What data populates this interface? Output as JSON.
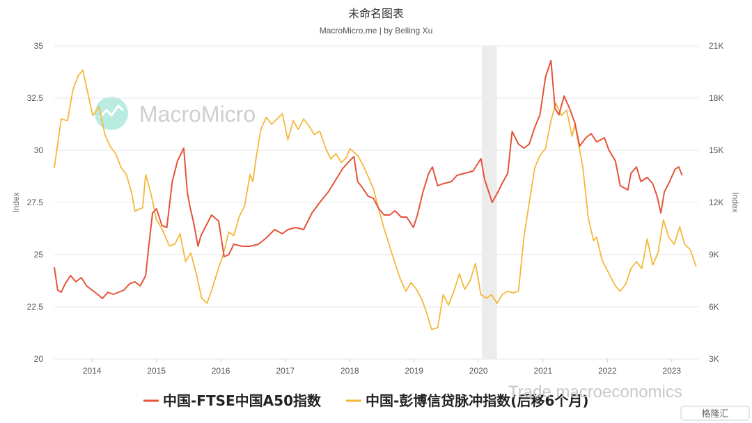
{
  "colors": {
    "a50": "#e4533a",
    "credit": "#f4b73a",
    "grid": "#e6e6e6",
    "recession_band": "#ececec",
    "watermark": "#cfcfcf",
    "watermark_logo": "#9de3d4"
  },
  "watermarks": {
    "brand": "MacroMicro",
    "corner": "Trade macroeconomics",
    "corner_badge": "格隆汇"
  },
  "chart_data": {
    "type": "line",
    "title": "未命名图表",
    "subtitle": "MacroMicro.me | by Belling Xu",
    "x_axis": {
      "type": "date",
      "range": [
        "2013-06-01",
        "2023-06-01"
      ],
      "tick_labels": [
        "2014",
        "2015",
        "2016",
        "2017",
        "2018",
        "2019",
        "2020",
        "2021",
        "2022",
        "2023"
      ]
    },
    "y_left": {
      "label": "Index",
      "range": [
        20,
        35
      ],
      "ticks": [
        20,
        22.5,
        25,
        27.5,
        30,
        32.5,
        35
      ],
      "tick_labels": [
        "20",
        "22.5",
        "25",
        "27.5",
        "30",
        "32.5",
        "35"
      ]
    },
    "y_right": {
      "label": "Index",
      "range": [
        3000,
        21000
      ],
      "ticks": [
        3000,
        6000,
        9000,
        12000,
        15000,
        18000,
        21000
      ],
      "tick_labels": [
        "3K",
        "6K",
        "9K",
        "12K",
        "15K",
        "18K",
        "21K"
      ]
    },
    "shaded_ranges": [
      {
        "from": "2020-01-20",
        "to": "2020-04-15"
      }
    ],
    "legend": {
      "position": "bottom"
    },
    "grid": true,
    "series": [
      {
        "name": "中国-FTSE中国A50指数",
        "axis": "left",
        "points": [
          [
            "2013-06-01",
            24.4
          ],
          [
            "2013-06-20",
            23.3
          ],
          [
            "2013-07-10",
            23.2
          ],
          [
            "2013-08-01",
            23.6
          ],
          [
            "2013-09-01",
            24.0
          ],
          [
            "2013-10-01",
            23.7
          ],
          [
            "2013-11-01",
            23.9
          ],
          [
            "2013-12-01",
            23.5
          ],
          [
            "2014-01-01",
            23.3
          ],
          [
            "2014-02-01",
            23.1
          ],
          [
            "2014-03-01",
            22.9
          ],
          [
            "2014-04-01",
            23.2
          ],
          [
            "2014-05-01",
            23.1
          ],
          [
            "2014-06-01",
            23.2
          ],
          [
            "2014-07-01",
            23.3
          ],
          [
            "2014-08-01",
            23.6
          ],
          [
            "2014-09-01",
            23.7
          ],
          [
            "2014-10-01",
            23.5
          ],
          [
            "2014-11-01",
            24.0
          ],
          [
            "2014-11-20",
            25.5
          ],
          [
            "2014-12-10",
            27.0
          ],
          [
            "2015-01-01",
            27.2
          ],
          [
            "2015-02-01",
            26.4
          ],
          [
            "2015-03-01",
            26.3
          ],
          [
            "2015-04-01",
            28.5
          ],
          [
            "2015-05-01",
            29.5
          ],
          [
            "2015-06-05",
            30.1
          ],
          [
            "2015-06-25",
            28.0
          ],
          [
            "2015-07-10",
            27.3
          ],
          [
            "2015-08-01",
            26.5
          ],
          [
            "2015-08-25",
            25.4
          ],
          [
            "2015-09-10",
            25.9
          ],
          [
            "2015-10-10",
            26.4
          ],
          [
            "2015-11-10",
            26.9
          ],
          [
            "2015-12-20",
            26.6
          ],
          [
            "2016-01-20",
            24.9
          ],
          [
            "2016-02-15",
            25.0
          ],
          [
            "2016-03-15",
            25.5
          ],
          [
            "2016-05-01",
            25.4
          ],
          [
            "2016-06-15",
            25.4
          ],
          [
            "2016-08-01",
            25.5
          ],
          [
            "2016-09-15",
            25.8
          ],
          [
            "2016-11-01",
            26.2
          ],
          [
            "2016-12-15",
            26.0
          ],
          [
            "2017-01-15",
            26.2
          ],
          [
            "2017-03-01",
            26.3
          ],
          [
            "2017-04-15",
            26.2
          ],
          [
            "2017-06-01",
            27.0
          ],
          [
            "2017-07-15",
            27.5
          ],
          [
            "2017-09-01",
            28.0
          ],
          [
            "2017-10-15",
            28.6
          ],
          [
            "2017-11-20",
            29.1
          ],
          [
            "2018-01-01",
            29.5
          ],
          [
            "2018-01-25",
            29.7
          ],
          [
            "2018-02-15",
            28.5
          ],
          [
            "2018-03-15",
            28.2
          ],
          [
            "2018-04-15",
            27.8
          ],
          [
            "2018-05-15",
            27.7
          ],
          [
            "2018-06-15",
            27.2
          ],
          [
            "2018-07-15",
            26.9
          ],
          [
            "2018-08-15",
            26.9
          ],
          [
            "2018-09-15",
            27.1
          ],
          [
            "2018-10-20",
            26.8
          ],
          [
            "2018-11-20",
            26.8
          ],
          [
            "2018-12-28",
            26.3
          ],
          [
            "2019-01-20",
            26.9
          ],
          [
            "2019-02-20",
            28.0
          ],
          [
            "2019-03-25",
            28.9
          ],
          [
            "2019-04-15",
            29.2
          ],
          [
            "2019-05-15",
            28.3
          ],
          [
            "2019-06-15",
            28.4
          ],
          [
            "2019-08-01",
            28.5
          ],
          [
            "2019-09-01",
            28.8
          ],
          [
            "2019-10-15",
            28.9
          ],
          [
            "2019-12-01",
            29.0
          ],
          [
            "2020-01-15",
            29.6
          ],
          [
            "2020-02-05",
            28.6
          ],
          [
            "2020-03-19",
            27.5
          ],
          [
            "2020-04-20",
            28.0
          ],
          [
            "2020-05-20",
            28.5
          ],
          [
            "2020-06-15",
            28.9
          ],
          [
            "2020-07-10",
            30.9
          ],
          [
            "2020-08-15",
            30.3
          ],
          [
            "2020-09-15",
            30.1
          ],
          [
            "2020-10-15",
            30.3
          ],
          [
            "2020-11-15",
            31.1
          ],
          [
            "2020-12-15",
            31.7
          ],
          [
            "2021-01-15",
            33.5
          ],
          [
            "2021-02-15",
            34.3
          ],
          [
            "2021-03-10",
            32.0
          ],
          [
            "2021-04-01",
            31.7
          ],
          [
            "2021-05-01",
            32.6
          ],
          [
            "2021-06-01",
            32.0
          ],
          [
            "2021-07-01",
            31.3
          ],
          [
            "2021-07-28",
            30.2
          ],
          [
            "2021-09-01",
            30.6
          ],
          [
            "2021-10-01",
            30.8
          ],
          [
            "2021-11-01",
            30.4
          ],
          [
            "2021-12-15",
            30.6
          ],
          [
            "2022-01-10",
            30.0
          ],
          [
            "2022-02-15",
            29.5
          ],
          [
            "2022-03-15",
            28.3
          ],
          [
            "2022-04-27",
            28.1
          ],
          [
            "2022-05-15",
            28.9
          ],
          [
            "2022-06-15",
            29.2
          ],
          [
            "2022-07-10",
            28.5
          ],
          [
            "2022-08-15",
            28.7
          ],
          [
            "2022-09-15",
            28.4
          ],
          [
            "2022-10-10",
            27.8
          ],
          [
            "2022-10-31",
            27.0
          ],
          [
            "2022-11-20",
            28.0
          ],
          [
            "2022-12-20",
            28.5
          ],
          [
            "2023-01-20",
            29.1
          ],
          [
            "2023-02-10",
            29.2
          ],
          [
            "2023-03-01",
            28.8
          ]
        ]
      },
      {
        "name": "中国-彭博信贷脉冲指数(后移6个月)",
        "axis": "right",
        "points": [
          [
            "2013-06-01",
            14000
          ],
          [
            "2013-07-10",
            16800
          ],
          [
            "2013-08-15",
            16700
          ],
          [
            "2013-09-15",
            18500
          ],
          [
            "2013-10-15",
            19300
          ],
          [
            "2013-11-10",
            19600
          ],
          [
            "2013-12-10",
            18200
          ],
          [
            "2014-01-05",
            17000
          ],
          [
            "2014-02-10",
            17500
          ],
          [
            "2014-03-15",
            15900
          ],
          [
            "2014-04-15",
            15200
          ],
          [
            "2014-05-15",
            14800
          ],
          [
            "2014-06-15",
            14000
          ],
          [
            "2014-07-15",
            13600
          ],
          [
            "2014-08-15",
            12500
          ],
          [
            "2014-09-01",
            11500
          ],
          [
            "2014-10-15",
            11700
          ],
          [
            "2014-11-01",
            13600
          ],
          [
            "2014-12-01",
            12500
          ],
          [
            "2015-01-01",
            11000
          ],
          [
            "2015-02-01",
            10500
          ],
          [
            "2015-03-15",
            9500
          ],
          [
            "2015-04-15",
            9600
          ],
          [
            "2015-05-15",
            10200
          ],
          [
            "2015-06-15",
            8600
          ],
          [
            "2015-07-15",
            9100
          ],
          [
            "2015-08-15",
            7900
          ],
          [
            "2015-09-15",
            6500
          ],
          [
            "2015-10-15",
            6200
          ],
          [
            "2015-11-15",
            7100
          ],
          [
            "2015-12-15",
            8100
          ],
          [
            "2016-01-15",
            9000
          ],
          [
            "2016-02-15",
            10300
          ],
          [
            "2016-03-15",
            10100
          ],
          [
            "2016-04-15",
            11200
          ],
          [
            "2016-05-15",
            11800
          ],
          [
            "2016-06-15",
            13600
          ],
          [
            "2016-07-01",
            13200
          ],
          [
            "2016-07-20",
            14600
          ],
          [
            "2016-08-15",
            16200
          ],
          [
            "2016-09-15",
            16900
          ],
          [
            "2016-10-15",
            16500
          ],
          [
            "2016-11-15",
            16800
          ],
          [
            "2016-12-15",
            17100
          ],
          [
            "2017-01-15",
            15600
          ],
          [
            "2017-02-15",
            16700
          ],
          [
            "2017-03-15",
            16200
          ],
          [
            "2017-04-15",
            16800
          ],
          [
            "2017-05-15",
            16400
          ],
          [
            "2017-06-15",
            15900
          ],
          [
            "2017-07-15",
            16100
          ],
          [
            "2017-08-15",
            15200
          ],
          [
            "2017-09-15",
            14500
          ],
          [
            "2017-10-15",
            14800
          ],
          [
            "2017-11-15",
            14300
          ],
          [
            "2017-12-15",
            14600
          ],
          [
            "2018-01-01",
            15100
          ],
          [
            "2018-02-15",
            14700
          ],
          [
            "2018-03-15",
            14200
          ],
          [
            "2018-04-15",
            13500
          ],
          [
            "2018-05-15",
            12800
          ],
          [
            "2018-06-15",
            11600
          ],
          [
            "2018-07-15",
            10500
          ],
          [
            "2018-08-15",
            9500
          ],
          [
            "2018-09-15",
            8500
          ],
          [
            "2018-10-15",
            7600
          ],
          [
            "2018-11-15",
            6900
          ],
          [
            "2018-12-15",
            7400
          ],
          [
            "2019-01-15",
            7000
          ],
          [
            "2019-02-15",
            6400
          ],
          [
            "2019-03-15",
            5600
          ],
          [
            "2019-04-10",
            4700
          ],
          [
            "2019-05-15",
            4800
          ],
          [
            "2019-06-15",
            6700
          ],
          [
            "2019-07-15",
            6100
          ],
          [
            "2019-08-15",
            6900
          ],
          [
            "2019-09-15",
            7900
          ],
          [
            "2019-10-15",
            7000
          ],
          [
            "2019-11-15",
            7500
          ],
          [
            "2019-12-15",
            8500
          ],
          [
            "2020-01-15",
            6700
          ],
          [
            "2020-02-15",
            6500
          ],
          [
            "2020-03-15",
            6700
          ],
          [
            "2020-04-15",
            6200
          ],
          [
            "2020-05-15",
            6700
          ],
          [
            "2020-06-15",
            6900
          ],
          [
            "2020-07-15",
            6800
          ],
          [
            "2020-08-15",
            6900
          ],
          [
            "2020-09-15",
            10000
          ],
          [
            "2020-10-15",
            12000
          ],
          [
            "2020-11-15",
            14000
          ],
          [
            "2020-12-15",
            14700
          ],
          [
            "2021-01-15",
            15100
          ],
          [
            "2021-02-15",
            16700
          ],
          [
            "2021-03-15",
            17700
          ],
          [
            "2021-04-15",
            17000
          ],
          [
            "2021-05-15",
            17300
          ],
          [
            "2021-06-15",
            15800
          ],
          [
            "2021-07-01",
            16500
          ],
          [
            "2021-08-15",
            14000
          ],
          [
            "2021-09-15",
            11100
          ],
          [
            "2021-10-15",
            9800
          ],
          [
            "2021-11-01",
            10000
          ],
          [
            "2021-12-01",
            8700
          ],
          [
            "2022-01-15",
            7800
          ],
          [
            "2022-02-15",
            7200
          ],
          [
            "2022-03-15",
            6900
          ],
          [
            "2022-04-15",
            7300
          ],
          [
            "2022-05-15",
            8200
          ],
          [
            "2022-06-15",
            8600
          ],
          [
            "2022-07-15",
            8200
          ],
          [
            "2022-08-15",
            9900
          ],
          [
            "2022-09-15",
            8400
          ],
          [
            "2022-10-15",
            9100
          ],
          [
            "2022-11-15",
            11000
          ],
          [
            "2022-12-15",
            10000
          ],
          [
            "2023-01-15",
            9600
          ],
          [
            "2023-02-15",
            10600
          ],
          [
            "2023-03-15",
            9600
          ],
          [
            "2023-04-15",
            9300
          ],
          [
            "2023-05-20",
            8300
          ]
        ]
      }
    ]
  }
}
